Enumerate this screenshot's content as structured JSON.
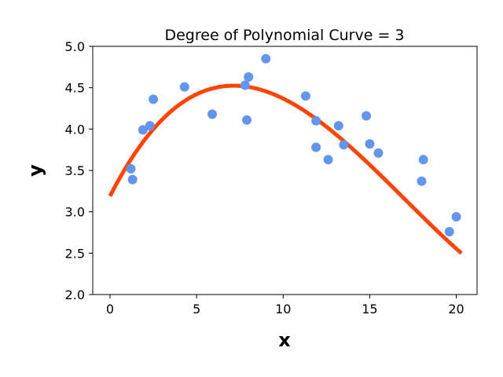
{
  "chart_data": {
    "type": "scatter",
    "title": "Degree of Polynomial Curve = 3",
    "xlabel": "x",
    "ylabel": "y",
    "xlim": [
      -1.0,
      21.2
    ],
    "ylim": [
      2.0,
      5.0
    ],
    "xticks": [
      0,
      5,
      10,
      15,
      20
    ],
    "xtick_labels": [
      "0",
      "5",
      "10",
      "15",
      "20"
    ],
    "yticks": [
      2.0,
      2.5,
      3.0,
      3.5,
      4.0,
      4.5,
      5.0
    ],
    "ytick_labels": [
      "2.0",
      "2.5",
      "3.0",
      "3.5",
      "4.0",
      "4.5",
      "5.0"
    ],
    "grid": false,
    "series": [
      {
        "name": "data points",
        "kind": "scatter",
        "color": "#6495ED",
        "points": [
          [
            1.2,
            3.52
          ],
          [
            1.3,
            3.39
          ],
          [
            1.9,
            3.99
          ],
          [
            2.3,
            4.04
          ],
          [
            2.5,
            4.36
          ],
          [
            4.3,
            4.51
          ],
          [
            5.9,
            4.18
          ],
          [
            7.8,
            4.53
          ],
          [
            7.9,
            4.11
          ],
          [
            8.0,
            4.63
          ],
          [
            9.0,
            4.85
          ],
          [
            11.3,
            4.4
          ],
          [
            11.9,
            4.1
          ],
          [
            11.9,
            3.78
          ],
          [
            12.6,
            3.63
          ],
          [
            13.2,
            4.04
          ],
          [
            13.5,
            3.81
          ],
          [
            14.8,
            4.16
          ],
          [
            15.0,
            3.82
          ],
          [
            15.5,
            3.71
          ],
          [
            18.0,
            3.37
          ],
          [
            18.1,
            3.63
          ],
          [
            19.6,
            2.76
          ],
          [
            20.0,
            2.94
          ]
        ]
      },
      {
        "name": "cubic fit",
        "kind": "line",
        "color": "#FF4500",
        "x_range": [
          0.0,
          20.3
        ],
        "coefficients": [
          3.19,
          0.4102,
          -0.03637,
          0.0007135
        ]
      }
    ]
  }
}
